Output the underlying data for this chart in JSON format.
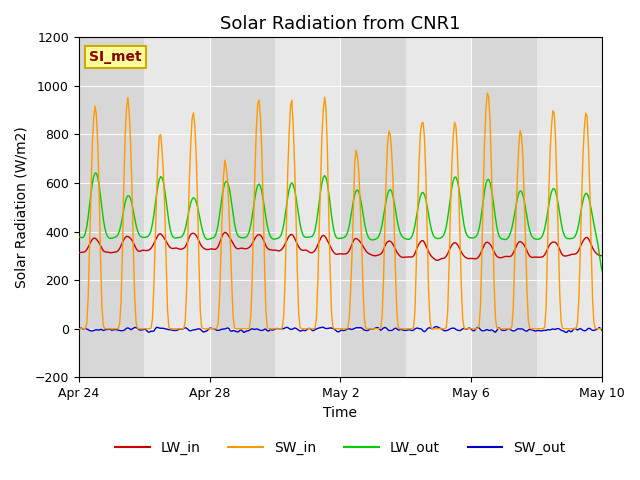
{
  "title": "Solar Radiation from CNR1",
  "xlabel": "Time",
  "ylabel": "Solar Radiation (W/m2)",
  "ylim": [
    -200,
    1200
  ],
  "annotation": "SI_met",
  "legend_labels": [
    "LW_in",
    "SW_in",
    "LW_out",
    "SW_out"
  ],
  "line_colors": [
    "#cc0000",
    "#ff9900",
    "#00cc00",
    "#0000cc"
  ],
  "background_color": "#ffffff",
  "plot_bg_color": "#e8e8e8",
  "band_color": "#d0d0d0",
  "figsize": [
    6.4,
    4.8
  ],
  "dpi": 100,
  "x_ticks_labels": [
    "Apr 24",
    "Apr 28",
    "May 2",
    "May 6",
    "May 10"
  ],
  "x_ticks_days": [
    0,
    4,
    8,
    12,
    16
  ]
}
